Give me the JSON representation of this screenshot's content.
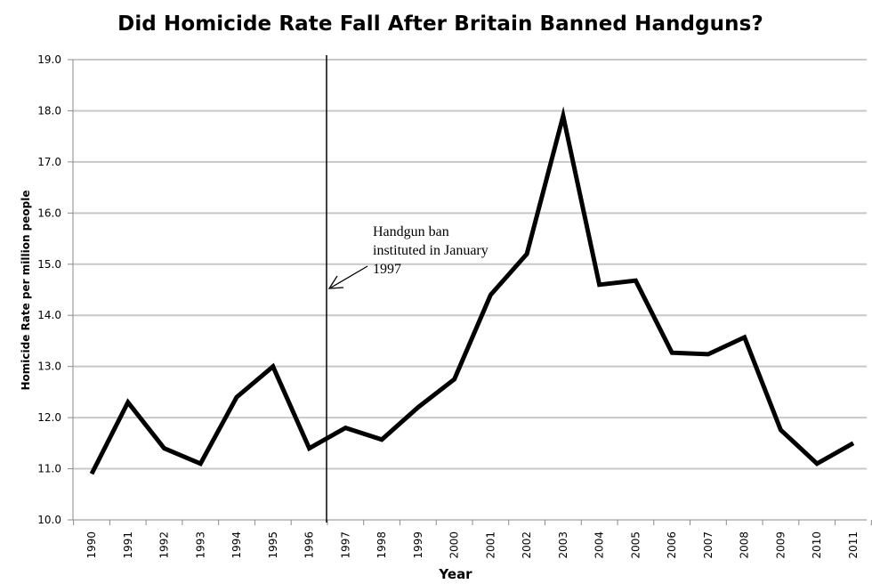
{
  "chart_data": {
    "type": "line",
    "title": "Did Homicide Rate Fall After Britain Banned Handguns?",
    "xlabel": "Year",
    "ylabel": "Homicide Rate per million people",
    "x": [
      "1990",
      "1991",
      "1992",
      "1993",
      "1994",
      "1995",
      "1996",
      "1997",
      "1998",
      "1999",
      "2000",
      "2001",
      "2002",
      "2003",
      "2004",
      "2005",
      "2006",
      "2007",
      "2008",
      "2009",
      "2010",
      "2011"
    ],
    "series": [
      {
        "values": [
          10.9,
          12.3,
          11.4,
          11.1,
          12.4,
          13.0,
          11.4,
          11.8,
          11.57,
          12.2,
          12.75,
          14.4,
          15.2,
          17.9,
          14.6,
          14.68,
          13.27,
          13.24,
          13.57,
          11.76,
          11.1,
          11.5
        ]
      }
    ],
    "ylim": [
      10.0,
      19.0
    ],
    "yticks": [
      "10.0",
      "11.0",
      "12.0",
      "13.0",
      "14.0",
      "15.0",
      "16.0",
      "17.0",
      "18.0",
      "19.0"
    ],
    "grid": "horizontal",
    "legend": "none",
    "line_color": "#000000",
    "grid_color": "#c8c8c8",
    "annotation": {
      "lines": [
        "Handgun ban",
        "instituted in January",
        "1997"
      ],
      "marker_after": "1996"
    }
  }
}
